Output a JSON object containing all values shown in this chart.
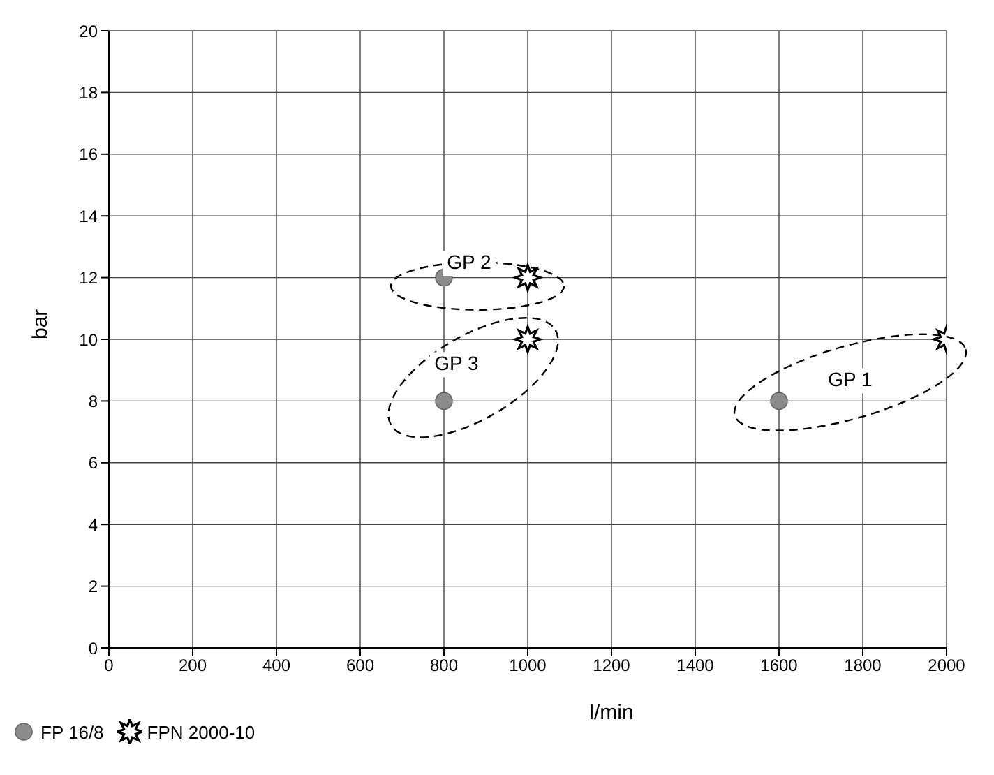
{
  "chart_data": {
    "type": "scatter",
    "xlabel": "l/min",
    "ylabel": "bar",
    "xlim": [
      0,
      2000
    ],
    "xticks": [
      0,
      200,
      400,
      600,
      800,
      1000,
      1200,
      1400,
      1600,
      1800,
      2000
    ],
    "ylim": [
      0,
      20
    ],
    "yticks": [
      0,
      2,
      4,
      6,
      8,
      10,
      12,
      14,
      16,
      18,
      20
    ],
    "grid": true,
    "legend": "bottom left",
    "series": [
      {
        "name": "FP 16/8",
        "color": "#8c8c8c",
        "marker": "circle",
        "x": [
          800,
          800,
          1600
        ],
        "values": [
          12,
          8,
          8
        ]
      },
      {
        "name": "FPN 2000-10",
        "color": "#000000",
        "marker": "star",
        "x": [
          1000,
          1000,
          2000
        ],
        "values": [
          12,
          10,
          10
        ]
      }
    ],
    "annotations": [
      "GP 2",
      "GP 3",
      "GP 1"
    ]
  }
}
